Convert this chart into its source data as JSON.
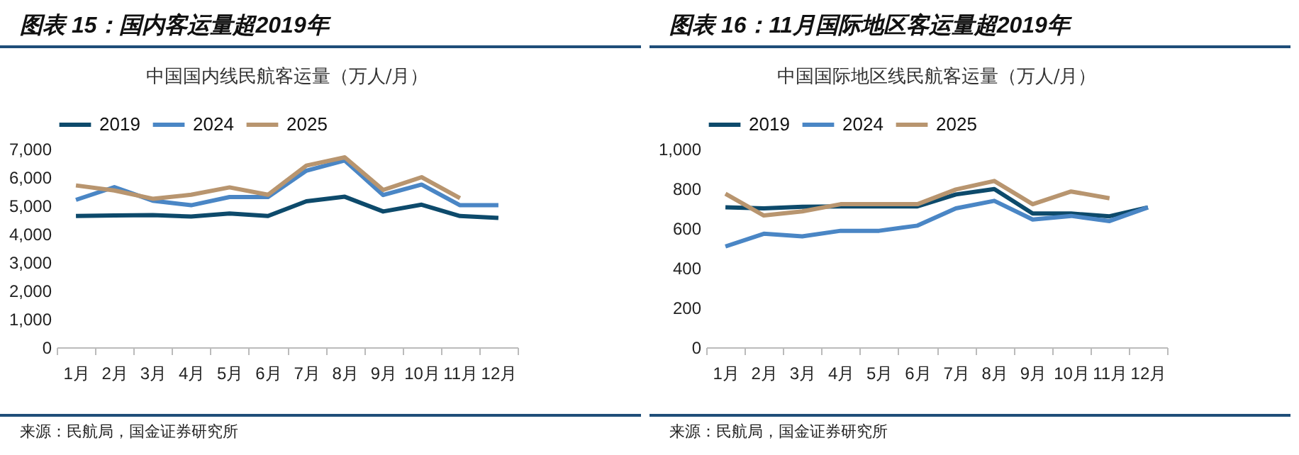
{
  "chart_data": [
    {
      "type": "line",
      "title": "图表 15：国内客运量超2019年",
      "subtitle": "中国国内线民航客运量（万人/月）",
      "annotations": [
        "来源：民航局，国金证券研究所"
      ],
      "categories": [
        "1月",
        "2月",
        "3月",
        "4月",
        "5月",
        "6月",
        "7月",
        "8月",
        "9月",
        "10月",
        "11月",
        "12月"
      ],
      "series": [
        {
          "name": "2019",
          "color": "#0d4a6b",
          "values": [
            4630,
            4650,
            4660,
            4610,
            4720,
            4630,
            5150,
            5310,
            4790,
            5030,
            4630,
            4560
          ]
        },
        {
          "name": "2024",
          "color": "#4a86c5",
          "values": [
            5200,
            5650,
            5170,
            5010,
            5300,
            5300,
            6230,
            6590,
            5370,
            5740,
            5010,
            5010
          ]
        },
        {
          "name": "2025",
          "color": "#b8956f",
          "values": [
            5710,
            5530,
            5240,
            5380,
            5640,
            5380,
            6410,
            6700,
            5550,
            6000,
            5260,
            null
          ]
        }
      ],
      "ylim": [
        0,
        7000
      ],
      "yticks": [
        0,
        {
          "value": 1000,
          "label": "1,000"
        },
        {
          "value": 2000,
          "label": "2,000"
        },
        {
          "value": 3000,
          "label": "3,000"
        },
        {
          "value": 4000,
          "label": "4,000"
        },
        {
          "value": 5000,
          "label": "5,000"
        },
        {
          "value": 6000,
          "label": "6,000"
        },
        {
          "value": 7000,
          "label": "7,000"
        }
      ],
      "grid": false,
      "legend": "top"
    },
    {
      "type": "line",
      "title": "图表 16：11月国际地区客运量超2019年",
      "subtitle": "中国国际地区线民航客运量（万人/月）",
      "annotations": [
        "来源：民航局，国金证券研究所"
      ],
      "categories": [
        "1月",
        "2月",
        "3月",
        "4月",
        "5月",
        "6月",
        "7月",
        "8月",
        "9月",
        "10月",
        "11月",
        "12月"
      ],
      "series": [
        {
          "name": "2019",
          "color": "#0d4a6b",
          "values": [
            705,
            700,
            708,
            710,
            710,
            710,
            770,
            797,
            674,
            674,
            660,
            705
          ]
        },
        {
          "name": "2024",
          "color": "#4a86c5",
          "values": [
            508,
            572,
            559,
            587,
            587,
            613,
            700,
            738,
            644,
            662,
            636,
            705
          ]
        },
        {
          "name": "2025",
          "color": "#b8956f",
          "values": [
            774,
            664,
            685,
            721,
            721,
            721,
            795,
            838,
            721,
            785,
            751,
            null
          ]
        }
      ],
      "ylim": [
        0,
        1000
      ],
      "yticks": [
        0,
        200,
        400,
        600,
        800,
        {
          "value": 1000,
          "label": "1,000"
        }
      ],
      "grid": false,
      "legend": "top"
    }
  ]
}
